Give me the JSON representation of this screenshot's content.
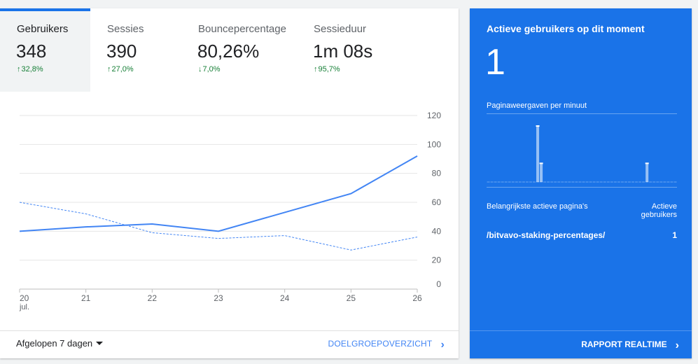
{
  "metrics": [
    {
      "name": "Gebruikers",
      "value": "348",
      "change": "32,8%",
      "direction": "up",
      "active": true
    },
    {
      "name": "Sessies",
      "value": "390",
      "change": "27,0%",
      "direction": "up",
      "active": false
    },
    {
      "name": "Bouncepercentage",
      "value": "80,26%",
      "change": "7,0%",
      "direction": "down",
      "active": false
    },
    {
      "name": "Sessieduur",
      "value": "1m 08s",
      "change": "95,7%",
      "direction": "up",
      "active": false
    }
  ],
  "chart_data": {
    "type": "line",
    "categories": [
      "20",
      "21",
      "22",
      "23",
      "24",
      "25",
      "26"
    ],
    "x_sublabel": "jul.",
    "yticks": [
      "120",
      "100",
      "80",
      "60",
      "40",
      "20",
      "0"
    ],
    "ylim": [
      0,
      120
    ],
    "grid": true,
    "series": [
      {
        "style": "solid",
        "values": [
          40,
          43,
          45,
          40,
          53,
          66,
          92
        ]
      },
      {
        "style": "dashed",
        "values": [
          60,
          52,
          39,
          35,
          37,
          27,
          36
        ]
      }
    ],
    "colors": {
      "line": "#4285f4",
      "grid": "#e6e6e6",
      "axis": "#bdbdbd",
      "label": "#5f6368"
    }
  },
  "footer": {
    "range_label": "Afgelopen 7 dagen",
    "audience_link": "DOELGROEPOVERZICHT"
  },
  "realtime": {
    "title": "Actieve gebruikers op dit moment",
    "count": "1",
    "pageviews_label": "Paginaweergaven per minuut",
    "pageviews_per_minute": [
      0,
      0,
      0,
      0,
      0,
      0,
      0,
      0,
      0,
      0,
      0,
      0,
      0,
      0,
      6,
      2,
      0,
      0,
      0,
      0,
      0,
      0,
      0,
      0,
      0,
      0,
      0,
      0,
      0,
      0,
      0,
      0,
      0,
      0,
      0,
      0,
      0,
      0,
      0,
      0,
      0,
      0,
      0,
      0,
      0,
      2,
      0,
      0,
      0,
      0,
      0,
      0,
      0,
      0
    ],
    "pageviews_max": 6,
    "col_page": "Belangrijkste actieve pagina's",
    "col_users_line1": "Actieve",
    "col_users_line2": "gebruikers",
    "rows": [
      {
        "page": "/bitvavo-staking-percentages/",
        "users": "1"
      }
    ],
    "report_link": "RAPPORT REALTIME"
  }
}
